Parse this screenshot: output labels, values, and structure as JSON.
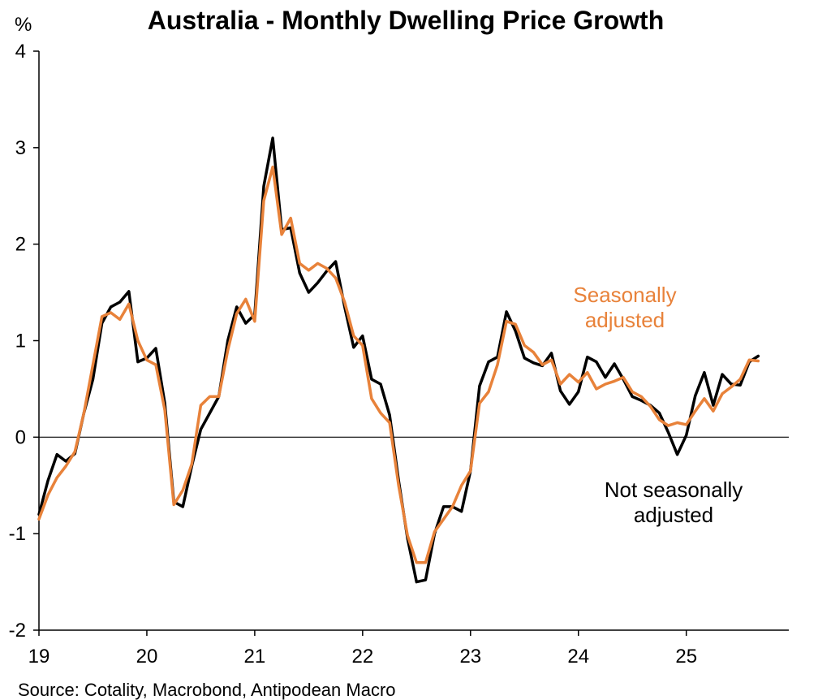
{
  "chart_data": {
    "type": "line",
    "title": "Australia - Monthly Dwelling Price Growth",
    "ylabel": "%",
    "xlabel": "",
    "ylim": [
      -2,
      4
    ],
    "yticks": [
      -2,
      -1,
      0,
      1,
      2,
      3,
      4
    ],
    "xlim": [
      2019.0,
      2025.95
    ],
    "xticks": [
      {
        "value": 2019,
        "label": "19"
      },
      {
        "value": 2020,
        "label": "20"
      },
      {
        "value": 2021,
        "label": "21"
      },
      {
        "value": 2022,
        "label": "22"
      },
      {
        "value": 2023,
        "label": "23"
      },
      {
        "value": 2024,
        "label": "24"
      },
      {
        "value": 2025,
        "label": "25"
      }
    ],
    "zero_line": true,
    "grid": false,
    "legend": "none",
    "source": "Source: Cotality, Macrobond, Antipodean Macro",
    "annotations": [
      {
        "series": "nsa",
        "lines": [
          "Not seasonally",
          "adjusted"
        ],
        "color": "#000000"
      },
      {
        "series": "sa",
        "lines": [
          "Seasonally",
          "adjusted"
        ],
        "color": "#E8823A"
      }
    ],
    "series": [
      {
        "name": "Not seasonally adjusted",
        "id": "nsa",
        "color": "#000000",
        "start": "2019-01",
        "values": [
          -0.8,
          -0.45,
          -0.18,
          -0.25,
          -0.17,
          0.25,
          0.6,
          1.18,
          1.35,
          1.4,
          1.51,
          0.78,
          0.82,
          0.92,
          0.35,
          -0.67,
          -0.72,
          -0.3,
          0.08,
          0.25,
          0.42,
          1.0,
          1.35,
          1.18,
          1.27,
          2.6,
          3.1,
          2.15,
          2.17,
          1.7,
          1.5,
          1.6,
          1.72,
          1.82,
          1.35,
          0.93,
          1.05,
          0.6,
          0.55,
          0.23,
          -0.45,
          -1.05,
          -1.5,
          -1.48,
          -1.0,
          -0.72,
          -0.72,
          -0.77,
          -0.35,
          0.53,
          0.78,
          0.83,
          1.3,
          1.1,
          0.82,
          0.77,
          0.74,
          0.87,
          0.48,
          0.34,
          0.47,
          0.83,
          0.78,
          0.62,
          0.76,
          0.6,
          0.42,
          0.38,
          0.33,
          0.25,
          0.05,
          -0.18,
          0.02,
          0.43,
          0.67,
          0.33,
          0.65,
          0.55,
          0.54,
          0.78,
          0.84
        ]
      },
      {
        "name": "Seasonally adjusted",
        "id": "sa",
        "color": "#E8823A",
        "start": "2019-01",
        "values": [
          -0.85,
          -0.6,
          -0.42,
          -0.3,
          -0.15,
          0.25,
          0.75,
          1.25,
          1.29,
          1.22,
          1.38,
          1.0,
          0.8,
          0.75,
          0.28,
          -0.7,
          -0.55,
          -0.28,
          0.33,
          0.42,
          0.42,
          0.9,
          1.28,
          1.43,
          1.2,
          2.45,
          2.8,
          2.1,
          2.27,
          1.8,
          1.73,
          1.8,
          1.75,
          1.65,
          1.4,
          1.05,
          0.95,
          0.4,
          0.25,
          0.15,
          -0.5,
          -1.02,
          -1.3,
          -1.3,
          -0.98,
          -0.85,
          -0.72,
          -0.5,
          -0.35,
          0.35,
          0.47,
          0.75,
          1.2,
          1.17,
          0.95,
          0.88,
          0.75,
          0.8,
          0.55,
          0.65,
          0.57,
          0.67,
          0.5,
          0.55,
          0.58,
          0.62,
          0.47,
          0.42,
          0.32,
          0.18,
          0.12,
          0.15,
          0.13,
          0.27,
          0.4,
          0.27,
          0.45,
          0.52,
          0.6,
          0.8,
          0.79
        ]
      }
    ]
  }
}
